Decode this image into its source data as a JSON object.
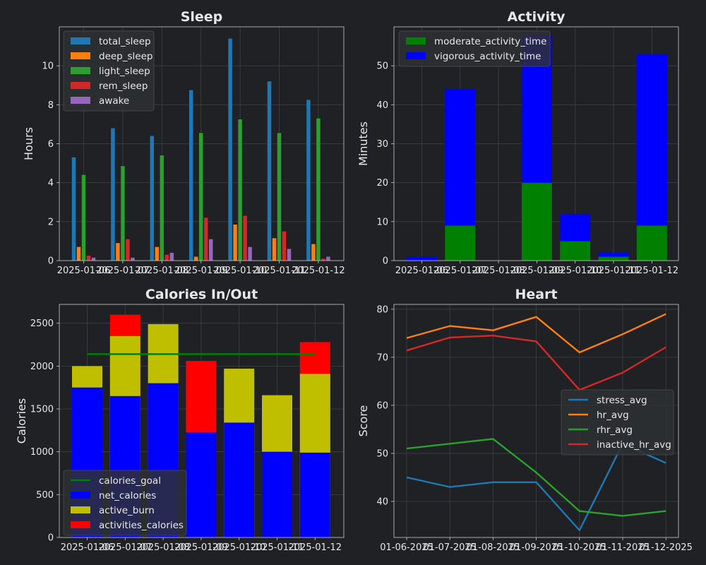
{
  "theme": {
    "background": "#202124",
    "grid": "#3c3f44",
    "spine": "#c8c8c8",
    "text": "#e8e8e8",
    "legend_bg": "#2e3034"
  },
  "chart_data": [
    {
      "id": "sleep",
      "type": "bar",
      "title": "Sleep",
      "xlabel": "",
      "ylabel": "Hours",
      "categories": [
        "2025-01-06",
        "2025-01-07",
        "2025-01-08",
        "2025-01-09",
        "2025-01-10",
        "2025-01-11",
        "2025-01-12"
      ],
      "ylim": [
        0,
        12
      ],
      "yticks": [
        0,
        2,
        4,
        6,
        8,
        10
      ],
      "legend": "top-left",
      "grid": true,
      "series": [
        {
          "name": "total_sleep",
          "color": "#1f77b4",
          "values": [
            5.3,
            6.8,
            6.4,
            8.75,
            11.4,
            9.2,
            8.25
          ]
        },
        {
          "name": "deep_sleep",
          "color": "#ff7f0e",
          "values": [
            0.7,
            0.9,
            0.7,
            0.2,
            1.85,
            1.15,
            0.85
          ]
        },
        {
          "name": "light_sleep",
          "color": "#2ca02c",
          "values": [
            4.4,
            4.85,
            5.4,
            6.55,
            7.25,
            6.55,
            7.3
          ]
        },
        {
          "name": "rem_sleep",
          "color": "#d62728",
          "values": [
            0.25,
            1.1,
            0.3,
            2.2,
            2.3,
            1.5,
            0.1
          ]
        },
        {
          "name": "awake",
          "color": "#9467bd",
          "values": [
            0.15,
            0.15,
            0.4,
            1.1,
            0.7,
            0.6,
            0.2
          ]
        }
      ]
    },
    {
      "id": "activity",
      "type": "bar",
      "stacked": true,
      "title": "Activity",
      "xlabel": "",
      "ylabel": "Minutes",
      "categories": [
        "2025-01-06",
        "2025-01-07",
        "2025-01-08",
        "2025-01-09",
        "2025-01-10",
        "2025-01-11",
        "2025-01-12"
      ],
      "ylim": [
        0,
        60
      ],
      "yticks": [
        0,
        10,
        20,
        30,
        40,
        50
      ],
      "legend": "top-left",
      "grid": true,
      "series": [
        {
          "name": "moderate_activity_time",
          "color": "#008000",
          "values": [
            0,
            9,
            0,
            20,
            5,
            1,
            9
          ]
        },
        {
          "name": "vigorous_activity_time",
          "color": "#0000ff",
          "values": [
            1,
            35,
            0,
            38,
            7,
            1,
            44
          ]
        }
      ]
    },
    {
      "id": "calories",
      "type": "bar",
      "title": "Calories In/Out",
      "xlabel": "",
      "ylabel": "Calories",
      "categories": [
        "2025-01-06",
        "2025-01-07",
        "2025-01-08",
        "2025-01-09",
        "2025-01-10",
        "2025-01-11",
        "2025-01-12"
      ],
      "ylim": [
        0,
        2720
      ],
      "yticks": [
        0,
        500,
        1000,
        1500,
        2000,
        2500
      ],
      "legend": "bottom-left",
      "grid": true,
      "goal": {
        "name": "calories_goal",
        "color": "#008000",
        "value": 2140
      },
      "series": [
        {
          "name": "net_calories",
          "color": "#0000ff",
          "values": [
            1750,
            1650,
            1800,
            1225,
            1340,
            1000,
            990
          ]
        },
        {
          "name": "active_burn",
          "color": "#bfbf00",
          "values": [
            2000,
            2350,
            2490,
            0,
            1970,
            1660,
            1910
          ]
        },
        {
          "name": "activities_calories",
          "color": "#ff0000",
          "values": [
            0,
            2600,
            0,
            2060,
            0,
            0,
            2280
          ]
        }
      ]
    },
    {
      "id": "heart",
      "type": "line",
      "title": "Heart",
      "xlabel": "",
      "ylabel": "Score",
      "x": [
        "01-06-2025",
        "01-07-2025",
        "01-08-2025",
        "01-09-2025",
        "01-10-2025",
        "01-11-2025",
        "01-12-2025"
      ],
      "ylim": [
        32.5,
        81
      ],
      "yticks": [
        40,
        50,
        60,
        70,
        80
      ],
      "legend": "center-right",
      "grid": true,
      "series": [
        {
          "name": "stress_avg",
          "color": "#1f77b4",
          "values": [
            45,
            43,
            44,
            44,
            34,
            52,
            48
          ]
        },
        {
          "name": "hr_avg",
          "color": "#ff7f0e",
          "values": [
            74,
            76.5,
            75.6,
            78.4,
            71,
            74.8,
            79
          ]
        },
        {
          "name": "rhr_avg",
          "color": "#2ca02c",
          "values": [
            51,
            52,
            53,
            46,
            38,
            37,
            38
          ]
        },
        {
          "name": "inactive_hr_avg",
          "color": "#d62728",
          "values": [
            71.4,
            74.1,
            74.5,
            73.3,
            63.2,
            66.8,
            72.1
          ]
        }
      ]
    }
  ]
}
